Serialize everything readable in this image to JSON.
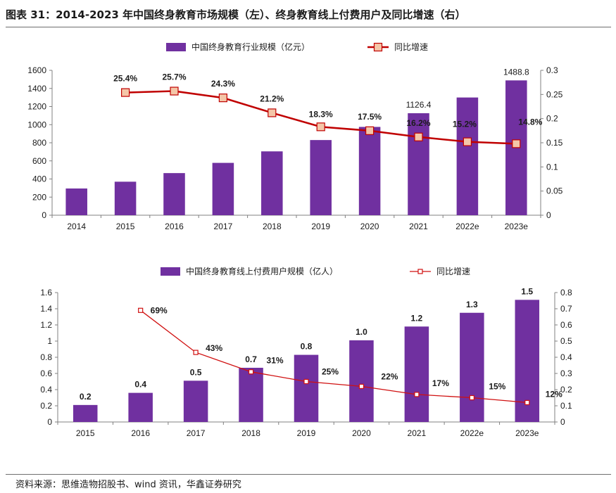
{
  "header": {
    "title": "图表 31：2014-2023 年中国终身教育市场规模（左）、终身教育线上付费用户及同比增速（右）",
    "source": "资料来源：思维造物招股书、wind 资讯，华鑫证券研究"
  },
  "chart_data": [
    {
      "type": "bar+line",
      "categories": [
        "2014",
        "2015",
        "2016",
        "2017",
        "2018",
        "2019",
        "2020",
        "2021",
        "2022e",
        "2023e"
      ],
      "series": [
        {
          "name": "中国终身教育行业规模（亿元）",
          "kind": "bar",
          "axis": "left",
          "values": [
            295,
            370,
            465,
            578,
            705,
            830,
            975,
            1126.4,
            1300,
            1488.8
          ],
          "labels": [
            "",
            "",
            "",
            "",
            "",
            "",
            "",
            "1126.4",
            "",
            "1488.8"
          ]
        },
        {
          "name": "同比增速",
          "kind": "line",
          "axis": "right",
          "values": [
            null,
            0.254,
            0.257,
            0.243,
            0.212,
            0.183,
            0.175,
            0.162,
            0.152,
            0.148
          ],
          "labels": [
            "",
            "25.4%",
            "25.7%",
            "24.3%",
            "21.2%",
            "18.3%",
            "17.5%",
            "16.2%",
            "15.2%",
            "14.8%"
          ]
        }
      ],
      "y_left": {
        "min": 0,
        "max": 1600,
        "ticks": [
          "0",
          "200",
          "400",
          "600",
          "800",
          "1000",
          "1200",
          "1400",
          "1600"
        ]
      },
      "y_right": {
        "min": 0,
        "max": 0.3,
        "ticks": [
          "0",
          "0.05",
          "0.1",
          "0.15",
          "0.2",
          "0.25",
          "0.3"
        ]
      },
      "colors": {
        "bar": "#7030a0",
        "line": "#c00000",
        "marker_fill": "#f4c6a8"
      },
      "legend_position": "top",
      "grid": false
    },
    {
      "type": "bar+line",
      "categories": [
        "2015",
        "2016",
        "2017",
        "2018",
        "2019",
        "2020",
        "2021",
        "2022e",
        "2023e"
      ],
      "series": [
        {
          "name": "中国终身教育线上付费用户规模（亿人）",
          "kind": "bar",
          "axis": "left",
          "values": [
            0.21,
            0.36,
            0.51,
            0.67,
            0.83,
            1.01,
            1.18,
            1.35,
            1.51
          ],
          "labels": [
            "0.2",
            "0.4",
            "0.5",
            "0.7",
            "0.8",
            "1.0",
            "1.2",
            "1.3",
            "1.5"
          ]
        },
        {
          "name": "同比增速",
          "kind": "line",
          "axis": "right",
          "values": [
            null,
            0.69,
            0.43,
            0.31,
            0.25,
            0.22,
            0.17,
            0.15,
            0.12
          ],
          "labels": [
            "",
            "69%",
            "43%",
            "31%",
            "25%",
            "22%",
            "17%",
            "15%",
            "12%"
          ]
        }
      ],
      "y_left": {
        "min": 0,
        "max": 1.6,
        "ticks": [
          "0",
          "0.2",
          "0.4",
          "0.6",
          "0.8",
          "1",
          "1.2",
          "1.4",
          "1.6"
        ]
      },
      "y_right": {
        "min": 0,
        "max": 0.8,
        "ticks": [
          "0",
          "0.1",
          "0.2",
          "0.3",
          "0.4",
          "0.5",
          "0.6",
          "0.7",
          "0.8"
        ]
      },
      "colors": {
        "bar": "#7030a0",
        "line": "#d01010",
        "marker_fill": "#ffffff"
      },
      "legend_position": "top",
      "grid": false
    }
  ]
}
